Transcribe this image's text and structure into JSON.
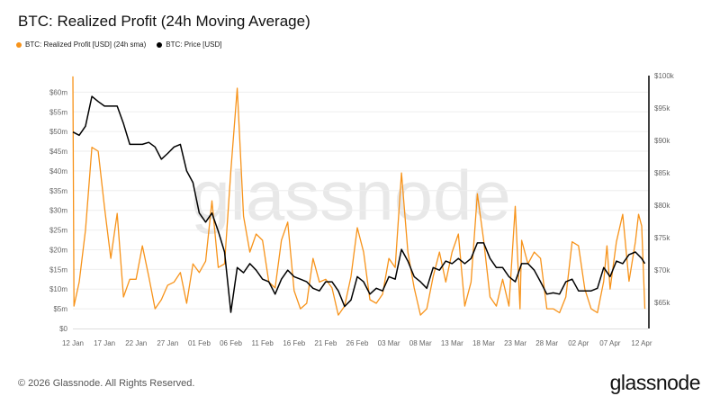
{
  "title": "BTC: Realized Profit (24h Moving Average)",
  "footer": "© 2026 Glassnode. All Rights Reserved.",
  "logo": "glassnode",
  "watermark": "glassnode",
  "colors": {
    "profit": "#f7931a",
    "price": "#000000",
    "grid": "#eeeeee",
    "watermark": "#e8e8e8"
  },
  "chart_data": {
    "type": "line",
    "title": "BTC: Realized Profit (24h Moving Average)",
    "legend_placement": "top-left",
    "grid": true,
    "x_ticks": [
      "12 Jan",
      "17 Jan",
      "22 Jan",
      "27 Jan",
      "01 Feb",
      "06 Feb",
      "11 Feb",
      "16 Feb",
      "21 Feb",
      "26 Feb",
      "03 Mar",
      "08 Mar",
      "13 Mar",
      "18 Mar",
      "23 Mar",
      "28 Mar",
      "02 Apr",
      "07 Apr",
      "12 Apr"
    ],
    "x_tick_dates": [
      "2026-01-12",
      "2026-01-17",
      "2026-01-22",
      "2026-01-27",
      "2026-02-01",
      "2026-02-06",
      "2026-02-11",
      "2026-02-16",
      "2026-02-21",
      "2026-02-26",
      "2026-03-03",
      "2026-03-08",
      "2026-03-13",
      "2026-03-18",
      "2026-03-23",
      "2026-03-28",
      "2026-04-02",
      "2026-04-07",
      "2026-04-12"
    ],
    "xlim": [
      "2026-01-12",
      "2026-04-13"
    ],
    "y_left": {
      "unit": "USD (millions)",
      "ylim": [
        0,
        64.2
      ],
      "ticks": [
        0,
        5,
        10,
        15,
        20,
        25,
        30,
        35,
        40,
        45,
        50,
        55,
        60
      ],
      "tick_labels": [
        "$0",
        "$5m",
        "$10m",
        "$15m",
        "$20m",
        "$25m",
        "$30m",
        "$35m",
        "$40m",
        "$45m",
        "$50m",
        "$55m",
        "$60m"
      ]
    },
    "y_right": {
      "unit": "USD (thousands)",
      "ylim": [
        61,
        100
      ],
      "ticks": [
        65,
        70,
        75,
        80,
        85,
        90,
        95,
        100
      ],
      "tick_labels": [
        "$65k",
        "$70k",
        "$75k",
        "$80k",
        "$85k",
        "$90k",
        "$95k",
        "$100k"
      ]
    },
    "series": [
      {
        "name": "BTC: Realized Profit [USD] (24h sma)",
        "axis": "left",
        "color": "#f7931a",
        "points": [
          [
            "2026-01-12T00:00",
            64
          ],
          [
            "2026-01-12T04:00",
            5.7
          ],
          [
            "2026-01-13",
            11.8
          ],
          [
            "2026-01-14",
            25
          ],
          [
            "2026-01-15",
            46
          ],
          [
            "2026-01-16",
            45
          ],
          [
            "2026-01-17",
            30.8
          ],
          [
            "2026-01-18",
            17.8
          ],
          [
            "2026-01-19",
            29.2
          ],
          [
            "2026-01-20",
            8
          ],
          [
            "2026-01-21",
            12.5
          ],
          [
            "2026-01-22",
            12.5
          ],
          [
            "2026-01-23",
            21
          ],
          [
            "2026-01-24",
            13.2
          ],
          [
            "2026-01-25",
            5
          ],
          [
            "2026-01-26",
            7.3
          ],
          [
            "2026-01-27",
            11
          ],
          [
            "2026-01-28",
            11.8
          ],
          [
            "2026-01-29",
            14.2
          ],
          [
            "2026-01-30",
            6.4
          ],
          [
            "2026-01-31",
            16.4
          ],
          [
            "2026-02-01",
            14.2
          ],
          [
            "2026-02-02",
            17.1
          ],
          [
            "2026-02-03",
            32.4
          ],
          [
            "2026-02-04",
            15.5
          ],
          [
            "2026-02-05",
            16.4
          ],
          [
            "2026-02-06",
            40
          ],
          [
            "2026-02-07",
            61
          ],
          [
            "2026-02-08",
            28.5
          ],
          [
            "2026-02-09",
            19.4
          ],
          [
            "2026-02-10",
            24
          ],
          [
            "2026-02-11",
            22.4
          ],
          [
            "2026-02-12",
            11.8
          ],
          [
            "2026-02-13",
            10.3
          ],
          [
            "2026-02-14",
            22.4
          ],
          [
            "2026-02-15",
            27
          ],
          [
            "2026-02-16",
            9.6
          ],
          [
            "2026-02-17",
            5
          ],
          [
            "2026-02-18",
            6.4
          ],
          [
            "2026-02-19",
            17.8
          ],
          [
            "2026-02-20",
            11.8
          ],
          [
            "2026-02-21",
            12.5
          ],
          [
            "2026-02-22",
            10.3
          ],
          [
            "2026-02-23",
            3.4
          ],
          [
            "2026-02-24",
            5.7
          ],
          [
            "2026-02-25",
            13.2
          ],
          [
            "2026-02-26",
            25.6
          ],
          [
            "2026-02-27",
            19.4
          ],
          [
            "2026-02-28",
            7.3
          ],
          [
            "2026-03-01",
            6.4
          ],
          [
            "2026-03-02",
            8.7
          ],
          [
            "2026-03-03",
            17.8
          ],
          [
            "2026-03-04",
            15.5
          ],
          [
            "2026-03-05",
            39.5
          ],
          [
            "2026-03-06",
            19.4
          ],
          [
            "2026-03-07",
            10.3
          ],
          [
            "2026-03-08",
            3.4
          ],
          [
            "2026-03-09",
            5
          ],
          [
            "2026-03-10",
            13.2
          ],
          [
            "2026-03-11",
            19.4
          ],
          [
            "2026-03-12",
            11.8
          ],
          [
            "2026-03-13",
            19.4
          ],
          [
            "2026-03-14",
            24
          ],
          [
            "2026-03-15",
            5.7
          ],
          [
            "2026-03-16",
            11.8
          ],
          [
            "2026-03-17",
            34.2
          ],
          [
            "2026-03-18",
            22.4
          ],
          [
            "2026-03-19",
            8
          ],
          [
            "2026-03-20",
            5.7
          ],
          [
            "2026-03-21",
            12.5
          ],
          [
            "2026-03-22",
            5.7
          ],
          [
            "2026-03-23",
            31
          ],
          [
            "2026-03-23T18:00",
            5
          ],
          [
            "2026-03-24",
            22.4
          ],
          [
            "2026-03-25",
            16.4
          ],
          [
            "2026-03-26",
            19.4
          ],
          [
            "2026-03-27",
            17.8
          ],
          [
            "2026-03-28",
            5
          ],
          [
            "2026-03-29",
            5
          ],
          [
            "2026-03-30",
            4
          ],
          [
            "2026-03-31",
            8
          ],
          [
            "2026-04-01",
            22
          ],
          [
            "2026-04-02",
            21
          ],
          [
            "2026-04-03",
            10
          ],
          [
            "2026-04-04",
            5
          ],
          [
            "2026-04-05",
            4
          ],
          [
            "2026-04-06",
            12
          ],
          [
            "2026-04-06T12:00",
            21
          ],
          [
            "2026-04-07",
            10
          ],
          [
            "2026-04-08",
            22
          ],
          [
            "2026-04-09",
            29
          ],
          [
            "2026-04-10",
            12
          ],
          [
            "2026-04-11",
            22
          ],
          [
            "2026-04-11T12:00",
            29
          ],
          [
            "2026-04-12",
            26
          ],
          [
            "2026-04-12T12:00",
            5
          ]
        ]
      },
      {
        "name": "BTC: Price [USD]",
        "axis": "right",
        "color": "#000000",
        "points": [
          [
            "2026-01-12",
            91.3
          ],
          [
            "2026-01-13",
            90.8
          ],
          [
            "2026-01-14",
            92.2
          ],
          [
            "2026-01-15",
            96.8
          ],
          [
            "2026-01-16",
            96
          ],
          [
            "2026-01-17",
            95.3
          ],
          [
            "2026-01-18",
            95.3
          ],
          [
            "2026-01-19",
            95.3
          ],
          [
            "2026-01-20",
            92.6
          ],
          [
            "2026-01-21",
            89.4
          ],
          [
            "2026-01-22",
            89.4
          ],
          [
            "2026-01-23",
            89.4
          ],
          [
            "2026-01-24",
            89.7
          ],
          [
            "2026-01-25",
            89
          ],
          [
            "2026-01-26",
            87.1
          ],
          [
            "2026-01-27",
            88
          ],
          [
            "2026-01-28",
            89
          ],
          [
            "2026-01-29",
            89.4
          ],
          [
            "2026-01-30",
            85.3
          ],
          [
            "2026-01-31",
            83.5
          ],
          [
            "2026-02-01",
            78.8
          ],
          [
            "2026-02-02",
            77.4
          ],
          [
            "2026-02-03",
            78.8
          ],
          [
            "2026-02-04",
            76
          ],
          [
            "2026-02-05",
            72.8
          ],
          [
            "2026-02-06",
            63.5
          ],
          [
            "2026-02-07",
            70.4
          ],
          [
            "2026-02-08",
            69.6
          ],
          [
            "2026-02-09",
            71
          ],
          [
            "2026-02-10",
            70
          ],
          [
            "2026-02-11",
            68.6
          ],
          [
            "2026-02-12",
            68.2
          ],
          [
            "2026-02-13",
            66.3
          ],
          [
            "2026-02-14",
            68.6
          ],
          [
            "2026-02-15",
            70
          ],
          [
            "2026-02-16",
            69
          ],
          [
            "2026-02-17",
            68.6
          ],
          [
            "2026-02-18",
            68.2
          ],
          [
            "2026-02-19",
            67.2
          ],
          [
            "2026-02-20",
            66.8
          ],
          [
            "2026-02-21",
            68.2
          ],
          [
            "2026-02-22",
            68.2
          ],
          [
            "2026-02-23",
            66.8
          ],
          [
            "2026-02-24",
            64.4
          ],
          [
            "2026-02-25",
            65.4
          ],
          [
            "2026-02-26",
            69
          ],
          [
            "2026-02-27",
            68.2
          ],
          [
            "2026-02-28",
            66.3
          ],
          [
            "2026-03-01",
            67.2
          ],
          [
            "2026-03-02",
            66.8
          ],
          [
            "2026-03-03",
            69
          ],
          [
            "2026-03-04",
            68.6
          ],
          [
            "2026-03-05",
            73.2
          ],
          [
            "2026-03-06",
            71.4
          ],
          [
            "2026-03-07",
            69
          ],
          [
            "2026-03-08",
            68.2
          ],
          [
            "2026-03-09",
            67.2
          ],
          [
            "2026-03-10",
            70.4
          ],
          [
            "2026-03-11",
            70
          ],
          [
            "2026-03-12",
            71.4
          ],
          [
            "2026-03-13",
            71
          ],
          [
            "2026-03-14",
            71.8
          ],
          [
            "2026-03-15",
            71
          ],
          [
            "2026-03-16",
            71.8
          ],
          [
            "2026-03-17",
            74.2
          ],
          [
            "2026-03-18",
            74.2
          ],
          [
            "2026-03-19",
            71.8
          ],
          [
            "2026-03-20",
            70.4
          ],
          [
            "2026-03-21",
            70.4
          ],
          [
            "2026-03-22",
            69
          ],
          [
            "2026-03-23",
            68.2
          ],
          [
            "2026-03-24",
            71
          ],
          [
            "2026-03-25",
            71
          ],
          [
            "2026-03-26",
            70
          ],
          [
            "2026-03-27",
            68.2
          ],
          [
            "2026-03-28",
            66.3
          ],
          [
            "2026-03-29",
            66.5
          ],
          [
            "2026-03-30",
            66.3
          ],
          [
            "2026-03-31",
            68.2
          ],
          [
            "2026-04-01",
            68.6
          ],
          [
            "2026-04-02",
            66.8
          ],
          [
            "2026-04-03",
            66.8
          ],
          [
            "2026-04-04",
            66.8
          ],
          [
            "2026-04-05",
            67.2
          ],
          [
            "2026-04-06",
            70.4
          ],
          [
            "2026-04-07",
            69
          ],
          [
            "2026-04-08",
            71.4
          ],
          [
            "2026-04-09",
            71
          ],
          [
            "2026-04-10",
            72.4
          ],
          [
            "2026-04-11",
            72.8
          ],
          [
            "2026-04-12",
            71.8
          ],
          [
            "2026-04-12T12:00",
            71
          ]
        ]
      }
    ]
  }
}
